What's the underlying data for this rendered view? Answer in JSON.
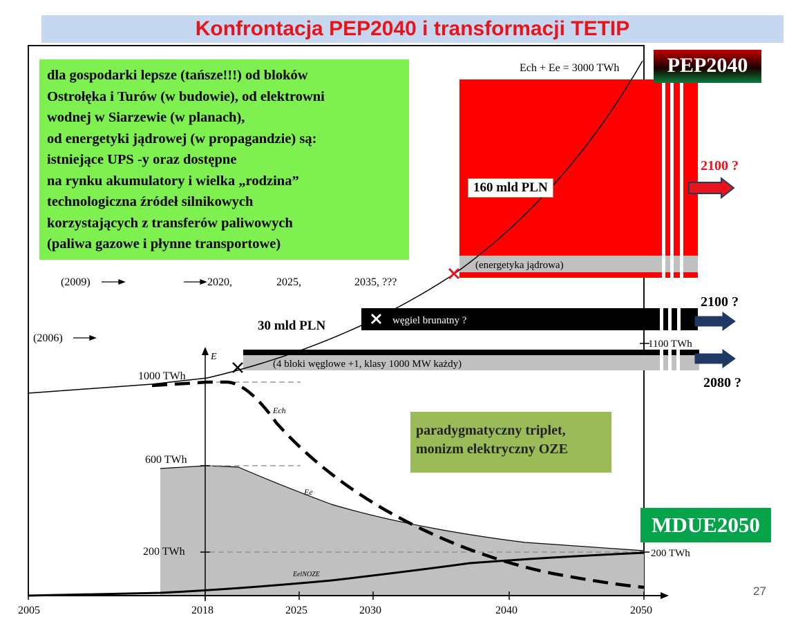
{
  "slide": {
    "title": "Konfrontacja PEP2040 i transformacji TETIP",
    "page_number": "27"
  },
  "green_box": {
    "lines": [
      "dla gospodarki lepsze (tańsze!!!) od bloków",
      "Ostrołęka i Turów (w budowie), od elektrowni",
      "wodnej w Siarzewie (w planach),",
      "od energetyki jądrowej (w propagandzie) są:",
      "istniejące UPS -y oraz dostępne",
      "na rynku akumulatory i wielka „rodzina”",
      "technologiczna źródeł silnikowych",
      "korzystających z transferów paliwowych",
      "(paliwa gazowe i płynne transportowe)"
    ]
  },
  "triplet_box": {
    "line1": "paradygmatyczny triplet,",
    "line2": "monizm elektryczny OZE"
  },
  "badges": {
    "pep": "PEP2040",
    "mdue": "MDUE2050"
  },
  "costs": {
    "large": "160 mld PLN",
    "small": "30 mld PLN"
  },
  "horizons": {
    "nuclear": "2100 ?",
    "lignite": "2100 ?",
    "coal": "2080 ?"
  },
  "diagram": {
    "total_label": "Ech + Ee = 3000 TWh",
    "nuclear_label": "(energetyka jądrowa)",
    "lignite_label": "węgiel brunatny ?",
    "coal_blocks_label": "(4 bloki węglowe +1, klasy 1000 MW każdy)",
    "level_1100": "1100 TWh",
    "level_200_right": "200 TWh",
    "timeline_upper": [
      "(2009)",
      "2020,",
      "2025,",
      "2035, ???"
    ],
    "timeline_lower": "(2006)",
    "y_axis_label": "E",
    "y_levels": [
      "1000 TWh",
      "600 TWh",
      "200 TWh"
    ],
    "x_ticks": [
      "2005",
      "2018",
      "2025",
      "2030",
      "2040",
      "2050"
    ],
    "curve_labels": [
      "Ech",
      "Ee",
      "EelNOZE"
    ]
  },
  "colors": {
    "title_red": "#e8141c",
    "title_bg": "#c5d8ef",
    "nuclear_red": "#ff0000",
    "green_box": "#7ef04f",
    "triplet_box": "#9bbb59",
    "mdue_green": "#06a44a",
    "arrow_fill": "#1f3864"
  }
}
